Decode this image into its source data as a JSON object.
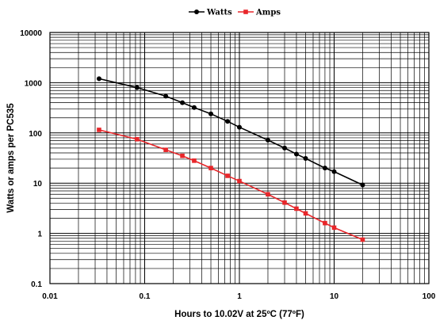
{
  "chart_data": {
    "type": "line",
    "xscale": "log",
    "yscale": "log",
    "xlim": [
      0.01,
      100
    ],
    "ylim": [
      0.1,
      10000
    ],
    "xlabel": "Hours to 10.02V at 25ºC (77ºF)",
    "ylabel": "Watts or amps per PC535",
    "x_ticks": [
      "0.01",
      "0.1",
      "1",
      "10",
      "100"
    ],
    "y_ticks": [
      "0.1",
      "1",
      "10",
      "100",
      "1000",
      "10000"
    ],
    "grid": true,
    "legend_position": "top-center",
    "series": [
      {
        "name": "Watts",
        "color": "#000000",
        "marker": "circle",
        "x": [
          0.033,
          0.083,
          0.167,
          0.25,
          0.333,
          0.5,
          0.75,
          1,
          2,
          3,
          4,
          5,
          8,
          10,
          20
        ],
        "y": [
          1200,
          800,
          540,
          400,
          320,
          240,
          170,
          130,
          72,
          50,
          38,
          31,
          20,
          17,
          9.2
        ]
      },
      {
        "name": "Amps",
        "color": "#e8262a",
        "marker": "square",
        "x": [
          0.033,
          0.083,
          0.167,
          0.25,
          0.333,
          0.5,
          0.75,
          1,
          2,
          3,
          4,
          5,
          8,
          10,
          20
        ],
        "y": [
          115,
          75,
          46,
          35,
          28,
          20,
          14,
          11,
          6,
          4.1,
          3.1,
          2.5,
          1.6,
          1.3,
          0.75
        ]
      }
    ]
  }
}
